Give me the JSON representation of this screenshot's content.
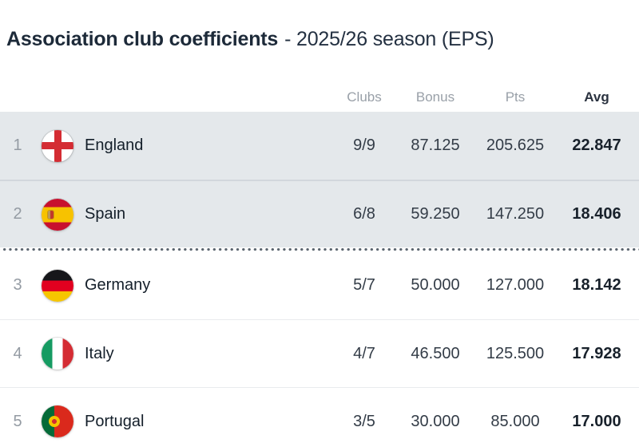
{
  "title": {
    "main": "Association club coefficients",
    "season": "- 2025/26 season (EPS)"
  },
  "table": {
    "headers": {
      "clubs": "Clubs",
      "bonus": "Bonus",
      "pts": "Pts",
      "avg": "Avg"
    },
    "cutoff_after_rank": 2,
    "rows": [
      {
        "rank": "1",
        "country": "England",
        "flag": "england",
        "clubs": "9/9",
        "bonus": "87.125",
        "pts": "205.625",
        "avg": "22.847",
        "highlighted": true
      },
      {
        "rank": "2",
        "country": "Spain",
        "flag": "spain",
        "clubs": "6/8",
        "bonus": "59.250",
        "pts": "147.250",
        "avg": "18.406",
        "highlighted": true
      },
      {
        "rank": "3",
        "country": "Germany",
        "flag": "germany",
        "clubs": "5/7",
        "bonus": "50.000",
        "pts": "127.000",
        "avg": "18.142",
        "highlighted": false
      },
      {
        "rank": "4",
        "country": "Italy",
        "flag": "italy",
        "clubs": "4/7",
        "bonus": "46.500",
        "pts": "125.500",
        "avg": "17.928",
        "highlighted": false
      },
      {
        "rank": "5",
        "country": "Portugal",
        "flag": "portugal",
        "clubs": "3/5",
        "bonus": "30.000",
        "pts": "85.000",
        "avg": "17.000",
        "highlighted": false
      }
    ]
  },
  "colors": {
    "highlight_row_bg": "#e4e8eb",
    "title_text": "#1d2a39",
    "header_text": "#99a0a8",
    "cutoff_dots": "#5b656f"
  }
}
